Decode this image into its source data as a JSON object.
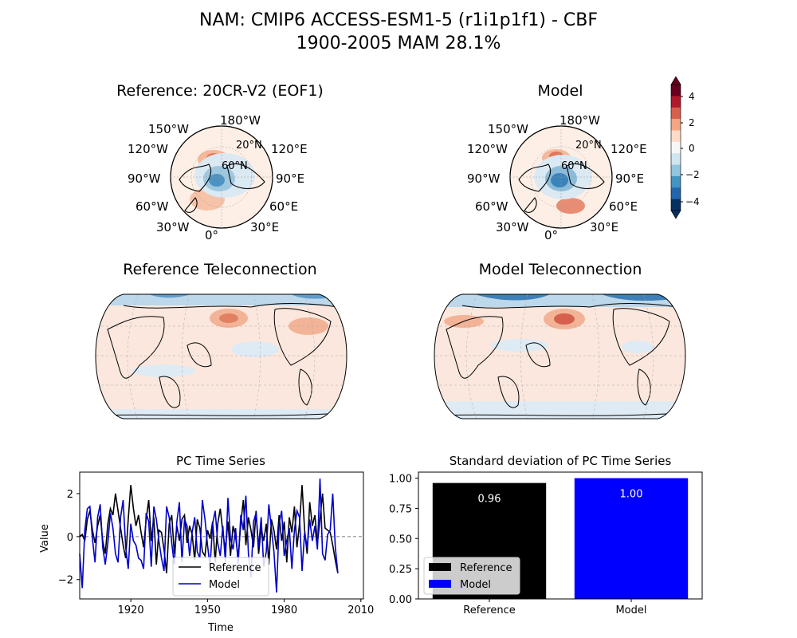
{
  "figure": {
    "title_line1": "NAM: CMIP6 ACCESS-ESM1-5 (r1i1p1f1) - CBF",
    "title_line2": "1900-2005 MAM 28.1%"
  },
  "panels": {
    "ref_eof_title": "Reference: 20CR-V2 (EOF1)",
    "model_eof_title": "Model",
    "ref_tele_title": "Reference Teleconnection",
    "model_tele_title": "Model Teleconnection",
    "polar_labels": [
      "180°W",
      "150°W",
      "120°W",
      "90°W",
      "60°W",
      "30°W",
      "0°",
      "30°E",
      "60°E",
      "90°E",
      "120°E",
      "20°N",
      "60°N"
    ]
  },
  "colorbar": {
    "ticks": [
      "4",
      "2",
      "0",
      "−2",
      "−4"
    ],
    "colors": [
      "#67001f",
      "#b2182b",
      "#d6604d",
      "#f4a582",
      "#fddbc7",
      "#f7f7f7",
      "#d1e5f0",
      "#92c5de",
      "#4393c3",
      "#2166ac",
      "#053061"
    ]
  },
  "chart_data": [
    {
      "type": "line",
      "title": "PC Time Series",
      "xlabel": "Time",
      "ylabel": "Value",
      "xlim": [
        1900,
        2011
      ],
      "ylim": [
        -2.9,
        3.0
      ],
      "xticks": [
        1920,
        1950,
        1980,
        2010
      ],
      "yticks": [
        2,
        0,
        -2
      ],
      "legend_position": "lower center",
      "series": [
        {
          "name": "Reference",
          "color": "#000000",
          "x_start": 1900,
          "values": [
            0.0,
            0.1,
            -0.2,
            0.8,
            1.2,
            0.3,
            -0.3,
            0.5,
            1.0,
            -0.2,
            -0.8,
            0.6,
            1.3,
            1.0,
            2.0,
            1.2,
            0.4,
            -0.4,
            -1.0,
            0.8,
            2.4,
            1.3,
            0.5,
            1.0,
            0.2,
            -0.5,
            0.8,
            1.7,
            -0.2,
            0.9,
            -1.3,
            0.3,
            0.2,
            -0.6,
            -1.7,
            0.6,
            1.0,
            -0.8,
            0.5,
            -0.2,
            0.8,
            1.0,
            -0.3,
            0.5,
            0.1,
            -1.1,
            0.8,
            0.4,
            -0.7,
            -0.9,
            0.3,
            -0.1,
            0.7,
            -1.2,
            0.6,
            1.3,
            0.2,
            -0.6,
            0.7,
            -0.9,
            0.5,
            0.0,
            -1.0,
            0.6,
            1.7,
            -0.4,
            0.9,
            0.3,
            -0.5,
            1.2,
            -0.8,
            0.4,
            -0.2,
            0.6,
            -1.3,
            0.8,
            0.3,
            -0.6,
            1.0,
            -0.2,
            0.7,
            -1.2,
            0.9,
            0.2,
            1.4,
            -0.5,
            0.6,
            2.4,
            0.3,
            -0.8,
            1.6,
            0.5,
            1.0,
            -0.3,
            0.8,
            2.0,
            0.4,
            0.3,
            0.2,
            -0.4,
            -1.1,
            -1.7
          ]
        },
        {
          "name": "Model",
          "color": "#0000cc",
          "x_start": 1900,
          "values": [
            -0.8,
            -2.4,
            0.3,
            1.3,
            1.4,
            -0.1,
            -1.2,
            0.9,
            1.5,
            -0.5,
            -1.3,
            -0.3,
            1.1,
            0.4,
            -0.8,
            -1.2,
            0.9,
            1.7,
            -0.5,
            -1.5,
            0.6,
            -0.2,
            -0.4,
            -1.0,
            -1.1,
            -1.5,
            1.1,
            0.7,
            -1.4,
            1.4,
            0.8,
            -0.2,
            -1.0,
            -1.6,
            1.4,
            0.9,
            -0.3,
            -1.3,
            0.7,
            1.6,
            -1.2,
            0.8,
            0.5,
            -0.9,
            0.2,
            0.9,
            -0.7,
            -1.0,
            1.7,
            0.8,
            -0.4,
            -1.4,
            0.6,
            1.2,
            -0.3,
            -0.9,
            0.5,
            -1.2,
            1.8,
            -0.1,
            -0.6,
            0.4,
            -1.3,
            1.0,
            0.3,
            1.9,
            -0.8,
            -1.9,
            0.7,
            1.1,
            -0.5,
            0.9,
            -1.4,
            -0.7,
            1.5,
            0.4,
            -0.7,
            -2.6,
            0.6,
            1.2,
            -0.9,
            -0.2,
            0.4,
            -1.5,
            0.3,
            1.2,
            0.9,
            -1.6,
            0.2,
            -0.5,
            0.8,
            -0.2,
            0.5,
            -0.6,
            2.7,
            -0.8,
            -1.1,
            0.1,
            0.3,
            2.0,
            -0.5,
            -1.7
          ]
        }
      ]
    },
    {
      "type": "bar",
      "title": "Standard deviation of PC Time Series",
      "categories": [
        "Reference",
        "Model"
      ],
      "values": [
        0.96,
        1.0
      ],
      "value_labels": [
        "0.96",
        "1.00"
      ],
      "colors": [
        "#000000",
        "#0000ff"
      ],
      "ylim": [
        0,
        1.05
      ],
      "yticks": [
        "0.00",
        "0.25",
        "0.50",
        "0.75",
        "1.00"
      ],
      "legend": [
        "Reference",
        "Model"
      ],
      "legend_position": "lower left"
    }
  ]
}
